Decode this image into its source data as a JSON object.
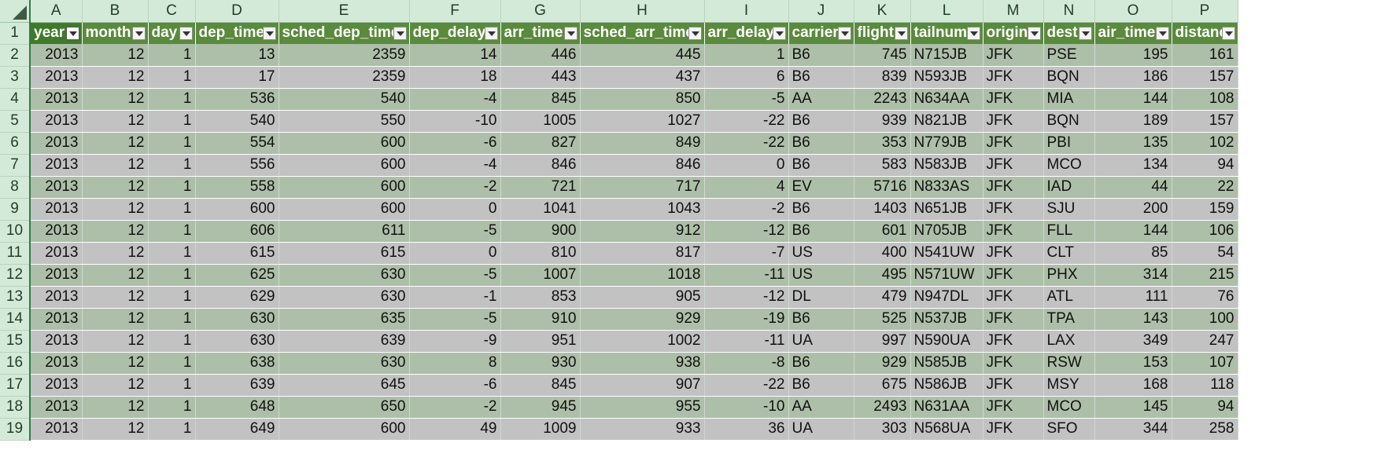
{
  "column_letters": [
    "A",
    "B",
    "C",
    "D",
    "E",
    "F",
    "G",
    "H",
    "I",
    "J",
    "K",
    "L",
    "M",
    "N",
    "O",
    "P"
  ],
  "row_numbers": [
    "1",
    "2",
    "3",
    "4",
    "5",
    "6",
    "7",
    "8",
    "9",
    "10",
    "11",
    "12",
    "13",
    "14",
    "15",
    "16",
    "17",
    "18",
    "19"
  ],
  "headers": [
    "year",
    "month",
    "day",
    "dep_time",
    "sched_dep_time",
    "dep_delay",
    "arr_time",
    "sched_arr_time",
    "arr_delay",
    "carrier",
    "flight",
    "tailnum",
    "origin",
    "dest",
    "air_time",
    "distance"
  ],
  "rows": [
    [
      "2013",
      "12",
      "1",
      "13",
      "2359",
      "14",
      "446",
      "445",
      "1",
      "B6",
      "745",
      "N715JB",
      "JFK",
      "PSE",
      "195",
      "161"
    ],
    [
      "2013",
      "12",
      "1",
      "17",
      "2359",
      "18",
      "443",
      "437",
      "6",
      "B6",
      "839",
      "N593JB",
      "JFK",
      "BQN",
      "186",
      "157"
    ],
    [
      "2013",
      "12",
      "1",
      "536",
      "540",
      "-4",
      "845",
      "850",
      "-5",
      "AA",
      "2243",
      "N634AA",
      "JFK",
      "MIA",
      "144",
      "108"
    ],
    [
      "2013",
      "12",
      "1",
      "540",
      "550",
      "-10",
      "1005",
      "1027",
      "-22",
      "B6",
      "939",
      "N821JB",
      "JFK",
      "BQN",
      "189",
      "157"
    ],
    [
      "2013",
      "12",
      "1",
      "554",
      "600",
      "-6",
      "827",
      "849",
      "-22",
      "B6",
      "353",
      "N779JB",
      "JFK",
      "PBI",
      "135",
      "102"
    ],
    [
      "2013",
      "12",
      "1",
      "556",
      "600",
      "-4",
      "846",
      "846",
      "0",
      "B6",
      "583",
      "N583JB",
      "JFK",
      "MCO",
      "134",
      "94"
    ],
    [
      "2013",
      "12",
      "1",
      "558",
      "600",
      "-2",
      "721",
      "717",
      "4",
      "EV",
      "5716",
      "N833AS",
      "JFK",
      "IAD",
      "44",
      "22"
    ],
    [
      "2013",
      "12",
      "1",
      "600",
      "600",
      "0",
      "1041",
      "1043",
      "-2",
      "B6",
      "1403",
      "N651JB",
      "JFK",
      "SJU",
      "200",
      "159"
    ],
    [
      "2013",
      "12",
      "1",
      "606",
      "611",
      "-5",
      "900",
      "912",
      "-12",
      "B6",
      "601",
      "N705JB",
      "JFK",
      "FLL",
      "144",
      "106"
    ],
    [
      "2013",
      "12",
      "1",
      "615",
      "615",
      "0",
      "810",
      "817",
      "-7",
      "US",
      "400",
      "N541UW",
      "JFK",
      "CLT",
      "85",
      "54"
    ],
    [
      "2013",
      "12",
      "1",
      "625",
      "630",
      "-5",
      "1007",
      "1018",
      "-11",
      "US",
      "495",
      "N571UW",
      "JFK",
      "PHX",
      "314",
      "215"
    ],
    [
      "2013",
      "12",
      "1",
      "629",
      "630",
      "-1",
      "853",
      "905",
      "-12",
      "DL",
      "479",
      "N947DL",
      "JFK",
      "ATL",
      "111",
      "76"
    ],
    [
      "2013",
      "12",
      "1",
      "630",
      "635",
      "-5",
      "910",
      "929",
      "-19",
      "B6",
      "525",
      "N537JB",
      "JFK",
      "TPA",
      "143",
      "100"
    ],
    [
      "2013",
      "12",
      "1",
      "630",
      "639",
      "-9",
      "951",
      "1002",
      "-11",
      "UA",
      "997",
      "N590UA",
      "JFK",
      "LAX",
      "349",
      "247"
    ],
    [
      "2013",
      "12",
      "1",
      "638",
      "630",
      "8",
      "930",
      "938",
      "-8",
      "B6",
      "929",
      "N585JB",
      "JFK",
      "RSW",
      "153",
      "107"
    ],
    [
      "2013",
      "12",
      "1",
      "639",
      "645",
      "-6",
      "845",
      "907",
      "-22",
      "B6",
      "675",
      "N586JB",
      "JFK",
      "MSY",
      "168",
      "118"
    ],
    [
      "2013",
      "12",
      "1",
      "648",
      "650",
      "-2",
      "945",
      "955",
      "-10",
      "AA",
      "2493",
      "N631AA",
      "JFK",
      "MCO",
      "145",
      "94"
    ],
    [
      "2013",
      "12",
      "1",
      "649",
      "600",
      "49",
      "1009",
      "933",
      "36",
      "UA",
      "303",
      "N568UA",
      "JFK",
      "SFO",
      "344",
      "258"
    ]
  ],
  "colors": {
    "header_fill": "#5a8a3c",
    "row_band_a": "#adbfa8",
    "row_band_b": "#c2c2c2",
    "headings_fill": "#d4ead9"
  },
  "icons": {
    "filter": "dropdown-filter-icon",
    "select_all": "select-all-triangle-icon"
  }
}
